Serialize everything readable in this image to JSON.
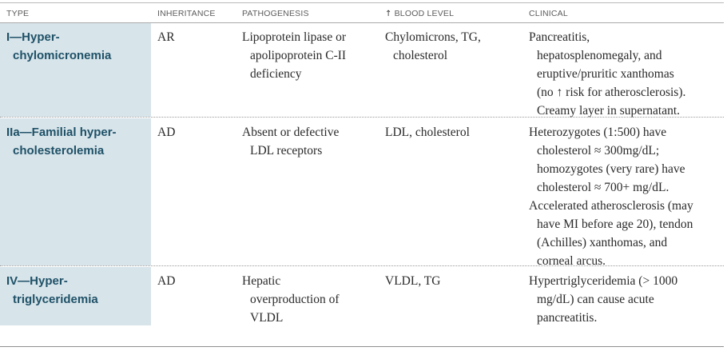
{
  "table": {
    "headers": {
      "type": "TYPE",
      "inheritance": "INHERITANCE",
      "pathogenesis": "PATHOGENESIS",
      "blood_level_arrow": "↑",
      "blood_level": "BLOOD LEVEL",
      "clinical": "CLINICAL"
    },
    "rows": [
      {
        "type_line1": "I—Hyper-",
        "type_line2": "chylomicronemia",
        "inheritance": "AR",
        "pathogenesis": [
          "Lipoprotein lipase or",
          "apolipoprotein C-II",
          "deficiency"
        ],
        "blood_level": [
          "Chylomicrons, TG,",
          "cholesterol"
        ],
        "clinical": [
          "Pancreatitis,",
          "hepatosplenomegaly, and",
          "eruptive/pruritic xanthomas",
          "(no ↑ risk for atherosclerosis).",
          "Creamy layer in supernatant."
        ]
      },
      {
        "type_line1": "IIa—Familial hyper-",
        "type_line2": "cholesterolemia",
        "inheritance": "AD",
        "pathogenesis": [
          "Absent or defective",
          "LDL receptors"
        ],
        "blood_level": [
          "LDL, cholesterol"
        ],
        "clinical": [
          "Heterozygotes (1:500) have",
          "cholesterol ≈ 300mg/dL;",
          "homozygotes (very rare) have",
          "cholesterol ≈ 700+ mg/dL.",
          "Accelerated atherosclerosis (may",
          "have MI before age 20), tendon",
          "(Achilles) xanthomas, and",
          "corneal arcus."
        ]
      },
      {
        "type_line1": "IV—Hyper-",
        "type_line2": "triglyceridemia",
        "inheritance": "AD",
        "pathogenesis": [
          "Hepatic",
          "overproduction of",
          "VLDL"
        ],
        "blood_level": [
          "VLDL, TG"
        ],
        "clinical": [
          "Hypertriglyceridemia (> 1000",
          "mg/dL) can cause acute",
          "pancreatitis."
        ]
      }
    ]
  },
  "colors": {
    "type_cell_bg": "#d7e4ea",
    "type_text": "#1f5167"
  }
}
